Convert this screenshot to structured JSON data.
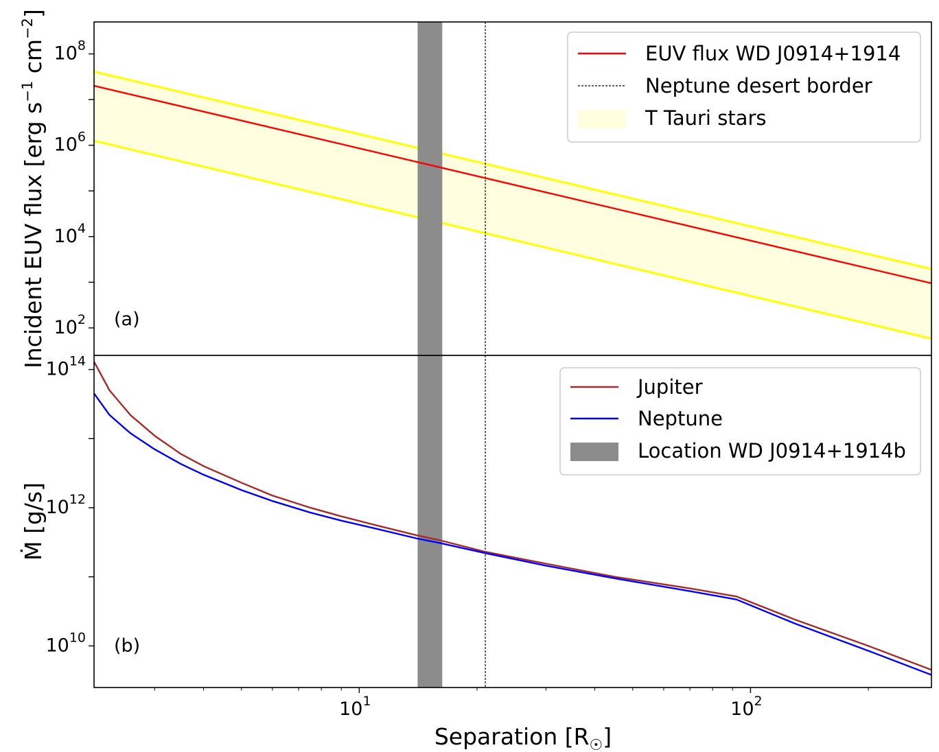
{
  "chart_data": [
    {
      "type": "line",
      "panel_label": "(a)",
      "ylabel": "Incident EUV flux [erg s$^{-1}$ cm$^{-2}$]",
      "ylabel_parts": [
        "Incident EUV flux [erg s",
        "−1",
        " cm",
        "−2",
        "]"
      ],
      "yscale": "log",
      "xscale": "log",
      "xlim": [
        2.1,
        290
      ],
      "ylim": [
        25,
        500000000
      ],
      "yticks": [
        {
          "value": 100,
          "base": "10",
          "exp": "2"
        },
        {
          "value": 10000,
          "base": "10",
          "exp": "4"
        },
        {
          "value": 1000000,
          "base": "10",
          "exp": "6"
        },
        {
          "value": 100000000,
          "base": "10",
          "exp": "8"
        }
      ],
      "series": [
        {
          "name": "EUV flux WD J0914+1914",
          "color": "#ff0000",
          "x": [
            2.1,
            290
          ],
          "y": [
            20000000,
            950
          ]
        }
      ],
      "band": {
        "name": "T Tauri stars",
        "fill": "#ffffe0",
        "edge_color": "#ffff00",
        "x": [
          2.1,
          290
        ],
        "upper": [
          41000000,
          1950
        ],
        "lower": [
          1250000,
          58
        ]
      },
      "vline": {
        "name": "Neptune desert border",
        "x": 21,
        "color": "#000000",
        "style": "dashed"
      },
      "vspan": {
        "name": "Location WD J0914+1914b",
        "x": [
          14.1,
          16.3
        ],
        "color": "#8c8c8c"
      },
      "legend": {
        "position": "upper right",
        "entries": [
          "EUV flux WD J0914+1914",
          "Neptune desert border",
          "T Tauri stars"
        ]
      }
    },
    {
      "type": "line",
      "panel_label": "(b)",
      "ylabel": "Ṁ [g/s]",
      "yscale": "log",
      "xscale": "log",
      "xlabel": "Separation [R☉]",
      "xlabel_parts": [
        "Separation [R",
        "☉",
        "]"
      ],
      "xlim": [
        2.1,
        290
      ],
      "ylim": [
        2500000000,
        160000000000000
      ],
      "yticks": [
        {
          "value": 10000000000,
          "base": "10",
          "exp": "10"
        },
        {
          "value": 1000000000000,
          "base": "10",
          "exp": "12"
        },
        {
          "value": 100000000000000,
          "base": "10",
          "exp": "14"
        }
      ],
      "xticks": [
        {
          "value": 10,
          "base": "10",
          "exp": "1"
        },
        {
          "value": 100,
          "base": "10",
          "exp": "2"
        }
      ],
      "series": [
        {
          "name": "Jupiter",
          "color": "#a52a2a",
          "x": [
            2.1,
            2.3,
            2.6,
            3.0,
            3.5,
            4.0,
            5.0,
            6.0,
            7.5,
            9.0,
            11.0,
            14.0,
            16.0,
            21.0,
            30.0,
            45.0,
            70.0,
            92.0,
            130.0,
            200.0,
            290.0
          ],
          "y": [
            130000000000000,
            50000000000000,
            22000000000000,
            11000000000000,
            6000000000000,
            4000000000000,
            2300000000000,
            1500000000000,
            1000000000000,
            750000000000,
            560000000000,
            400000000000,
            340000000000,
            230000000000,
            155000000000,
            100000000000,
            68000000000,
            52000000000,
            24000000000,
            10000000000,
            4500000000
          ]
        },
        {
          "name": "Neptune",
          "color": "#0000ff",
          "x": [
            2.1,
            2.3,
            2.6,
            3.0,
            3.5,
            4.0,
            5.0,
            6.0,
            7.5,
            9.0,
            11.0,
            14.0,
            16.0,
            21.0,
            30.0,
            45.0,
            70.0,
            92.0,
            130.0,
            200.0,
            290.0
          ],
          "y": [
            45000000000000,
            22000000000000,
            12000000000000,
            7000000000000,
            4300000000000,
            3000000000000,
            1800000000000,
            1250000000000,
            850000000000,
            650000000000,
            500000000000,
            360000000000,
            310000000000,
            220000000000,
            145000000000,
            95000000000,
            62000000000,
            47000000000,
            21000000000,
            8500000000,
            3800000000
          ]
        }
      ],
      "vline": {
        "name": "Neptune desert border",
        "x": 21,
        "color": "#000000",
        "style": "dashed"
      },
      "vspan": {
        "name": "Location WD J0914+1914b",
        "x": [
          14.1,
          16.3
        ],
        "color": "#8c8c8c"
      },
      "legend": {
        "position": "upper right",
        "entries": [
          "Jupiter",
          "Neptune",
          "Location WD J0914+1914b"
        ]
      }
    }
  ]
}
